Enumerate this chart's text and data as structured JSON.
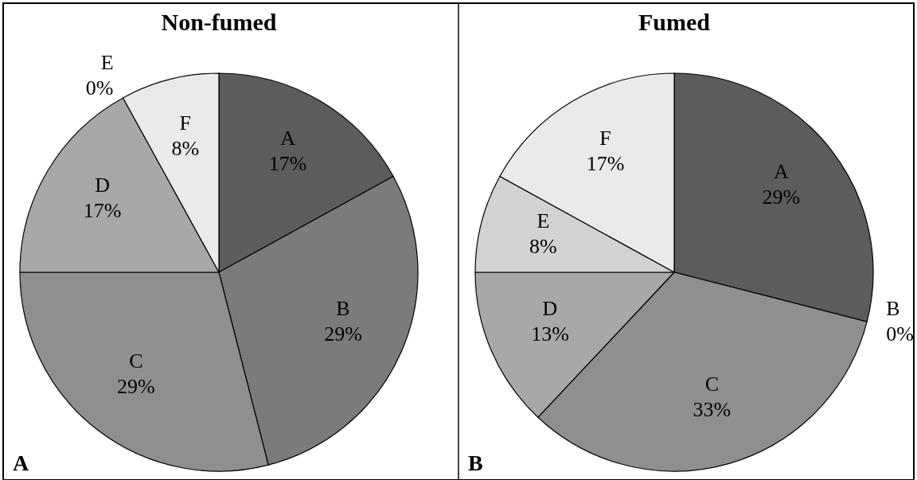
{
  "chart_data": [
    {
      "type": "pie",
      "title": "Non-fumed",
      "categories": [
        "A",
        "B",
        "C",
        "D",
        "E",
        "F"
      ],
      "values": [
        17,
        29,
        29,
        17,
        0,
        8
      ],
      "value_labels": [
        "17%",
        "29%",
        "29%",
        "17%",
        "0%",
        "8%"
      ],
      "colors": [
        "#5c5c5c",
        "#7b7b7b",
        "#8f8f8f",
        "#a8a8a8",
        "#d2d2d2",
        "#eaeaea"
      ],
      "annotations": [
        "A"
      ]
    },
    {
      "type": "pie",
      "title": "Fumed",
      "categories": [
        "A",
        "B",
        "C",
        "D",
        "E",
        "F"
      ],
      "values": [
        29,
        0,
        33,
        13,
        8,
        17
      ],
      "value_labels": [
        "29%",
        "0%",
        "33%",
        "13%",
        "8%",
        "17%"
      ],
      "colors": [
        "#5c5c5c",
        "#7b7b7b",
        "#8f8f8f",
        "#a8a8a8",
        "#d2d2d2",
        "#eaeaea"
      ],
      "annotations": [
        "B"
      ]
    }
  ]
}
